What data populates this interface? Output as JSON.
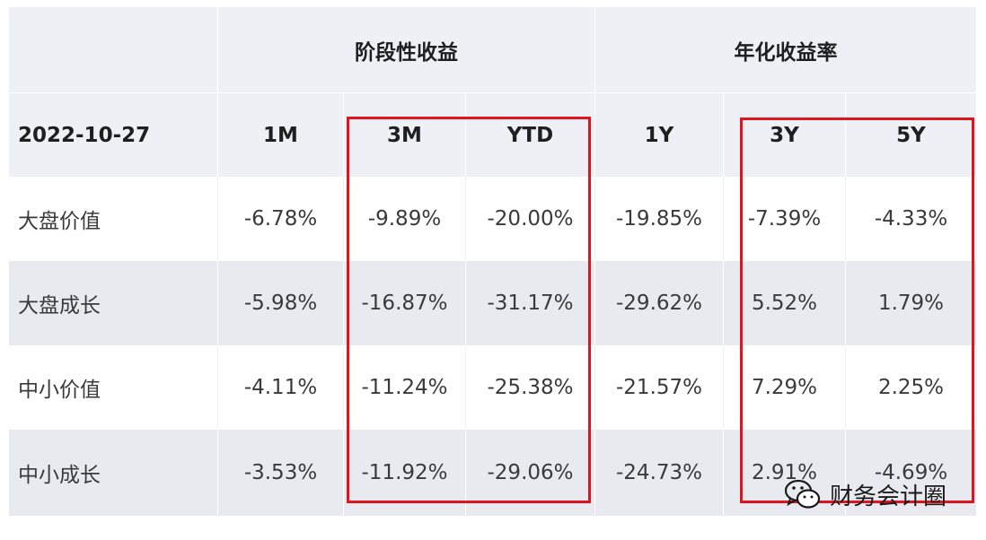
{
  "header": {
    "group_stage": "阶段性收益",
    "group_annual": "年化收益率",
    "date": "2022-10-27",
    "cols": [
      "1M",
      "3M",
      "YTD",
      "1Y",
      "3Y",
      "5Y"
    ]
  },
  "rows": [
    {
      "name": "大盘价值",
      "values": [
        "-6.78%",
        "-9.89%",
        "-20.00%",
        "-19.85%",
        "-7.39%",
        "-4.33%"
      ]
    },
    {
      "name": "大盘成长",
      "values": [
        "-5.98%",
        "-16.87%",
        "-31.17%",
        "-29.62%",
        "5.52%",
        "1.79%"
      ]
    },
    {
      "name": "中小价值",
      "values": [
        "-4.11%",
        "-11.24%",
        "-25.38%",
        "-21.57%",
        "7.29%",
        "2.25%"
      ]
    },
    {
      "name": "中小成长",
      "values": [
        "-3.53%",
        "-11.92%",
        "-29.06%",
        "-24.73%",
        "2.91%",
        "-4.69%"
      ]
    }
  ],
  "watermark": {
    "text": "财务会计圈",
    "icon": "wechat-icon"
  },
  "colors": {
    "highlight": "#e0141c",
    "header_bg": "#eef0f5",
    "stripe_bg": "#e8eaf0"
  }
}
